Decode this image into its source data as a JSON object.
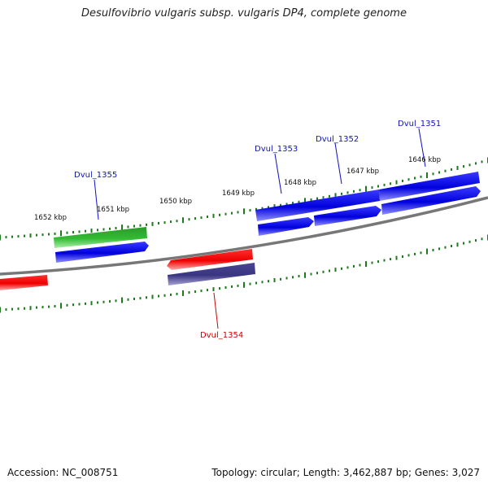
{
  "title": "Desulfovibrio vulgaris subsp. vulgaris DP4, complete genome",
  "footer": {
    "accession": "Accession: NC_008751",
    "stats": "Topology: circular; Length: 3,462,887 bp; Genes: 3,027"
  },
  "colors": {
    "backbone": "#7a7a7a",
    "tick": "#1f7a1f",
    "blue_gene": "#0000e0",
    "green_gene": "#33bb33",
    "red_gene": "#ee0000",
    "purple_gene": "#3a3580",
    "label_blue": "#1010c0",
    "label_red": "#cc0000"
  },
  "scale_labels": [
    "1652 kbp",
    "1651 kbp",
    "1650 kbp",
    "1649 kbp",
    "1648 kbp",
    "1647 kbp",
    "1646 kbp"
  ],
  "gene_labels": [
    {
      "name": "Dvul_1355",
      "color": "blue"
    },
    {
      "name": "Dvul_1353",
      "color": "blue"
    },
    {
      "name": "Dvul_1352",
      "color": "blue"
    },
    {
      "name": "Dvul_1351",
      "color": "blue"
    },
    {
      "name": "Dvul_1354",
      "color": "red"
    }
  ]
}
